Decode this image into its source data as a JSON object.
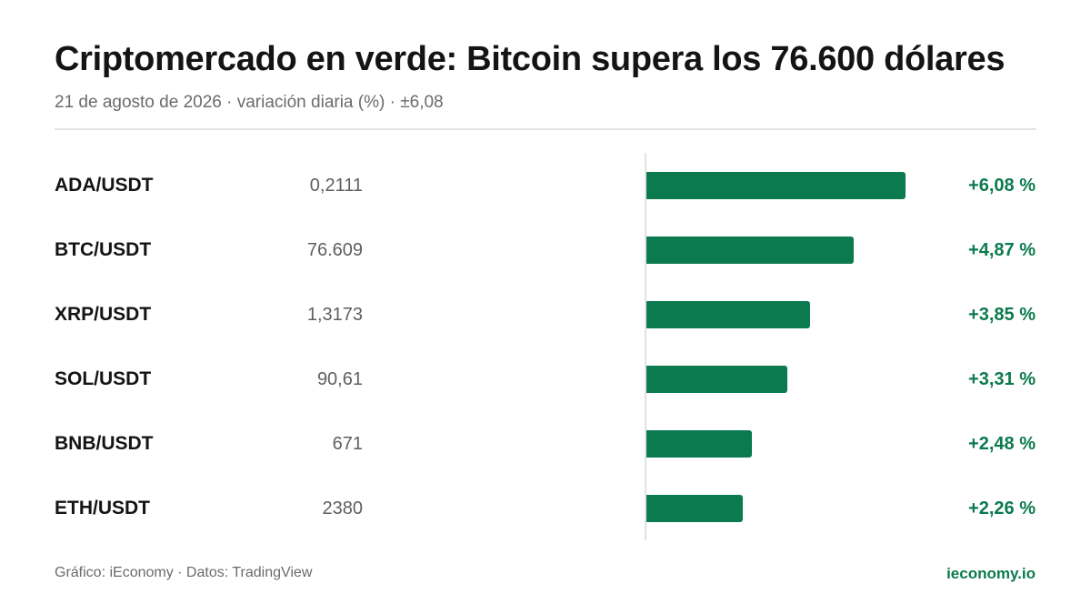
{
  "header": {
    "title": "Criptomercado en verde: Bitcoin supera los 76.600 dólares",
    "subtitle": "21 de agosto de 2026 · variación diaria (%) · ±6,08"
  },
  "colors": {
    "bar": "#0c7a4f",
    "positive_text": "#0c7a4f"
  },
  "chart_data": {
    "type": "bar",
    "orientation": "horizontal",
    "title": "Criptomercado en verde: Bitcoin supera los 76.600 dólares",
    "xlim": [
      0,
      6.08
    ],
    "categories": [
      "ADA/USDT",
      "BTC/USDT",
      "XRP/USDT",
      "SOL/USDT",
      "BNB/USDT",
      "ETH/USDT"
    ],
    "prices": [
      "0,2111",
      "76.609",
      "1,3173",
      "90,61",
      "671",
      "2380"
    ],
    "values": [
      6.08,
      4.87,
      3.85,
      3.31,
      2.48,
      2.26
    ],
    "value_labels": [
      "+6,08 %",
      "+4,87 %",
      "+3,85 %",
      "+3,31 %",
      "+2,48 %",
      "+2,26 %"
    ]
  },
  "footer": {
    "source": "Gráfico: iEconomy · Datos: TradingView",
    "brand": "ieconomy.io"
  }
}
